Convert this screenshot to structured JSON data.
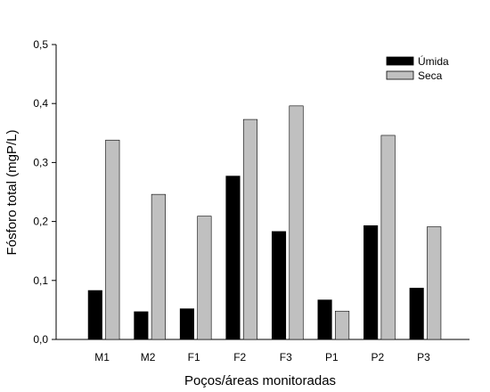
{
  "chart_data": {
    "type": "bar",
    "xlabel": "Poços/áreas monitoradas",
    "ylabel": "Fósforo total (mgP/L)",
    "categories": [
      "M1",
      "M2",
      "F1",
      "F2",
      "F3",
      "P1",
      "P2",
      "P3"
    ],
    "ylim": [
      0,
      0.5
    ],
    "yticks": [
      "0,0",
      "0,1",
      "0,2",
      "0,3",
      "0,4",
      "0,5"
    ],
    "grid": false,
    "legend_position": "top-right",
    "series": [
      {
        "name": "Úmida",
        "color": "#000000",
        "values": [
          0.083,
          0.047,
          0.052,
          0.277,
          0.183,
          0.067,
          0.193,
          0.087
        ]
      },
      {
        "name": "Seca",
        "color": "#c0c0c0",
        "values": [
          0.338,
          0.246,
          0.209,
          0.373,
          0.396,
          0.048,
          0.346,
          0.191
        ]
      }
    ]
  }
}
